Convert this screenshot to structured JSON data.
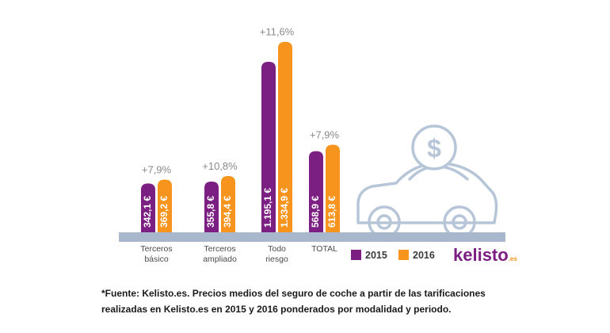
{
  "chart_data": {
    "type": "bar",
    "categories": [
      [
        "Terceros",
        "básico"
      ],
      [
        "Terceros",
        "ampliado"
      ],
      [
        "Todo",
        "riesgo"
      ],
      [
        "TOTAL"
      ]
    ],
    "series": [
      {
        "name": "2015",
        "color": "#7b1f82",
        "values": [
          342.1,
          355.8,
          1195.1,
          568.9
        ],
        "labels": [
          "342,1 €",
          "355,8 €",
          "1.195,1 €",
          "568,9 €"
        ]
      },
      {
        "name": "2016",
        "color": "#f7941d",
        "values": [
          369.2,
          394.4,
          1334.9,
          613.8
        ],
        "labels": [
          "369,2 €",
          "394,4 €",
          "1.334,9 €",
          "613,8 €"
        ]
      }
    ],
    "change_labels": [
      "+7,9%",
      "+10,8%",
      "+11,6%",
      "+7,9%"
    ],
    "ground_color": "#a8b7cc",
    "car_icon": "car-with-dollar-coin-icon"
  },
  "brand": {
    "name": "kelisto",
    "suffix": ".es",
    "name_color": "#7b1f82",
    "suffix_color": "#f7941d"
  },
  "footnote": {
    "line1": "*Fuente: Kelisto.es. Precios medios del seguro de coche a partir de las tarificaciones",
    "line2": "realizadas en Kelisto.es en 2015 y 2016 ponderados por modalidad y periodo."
  }
}
